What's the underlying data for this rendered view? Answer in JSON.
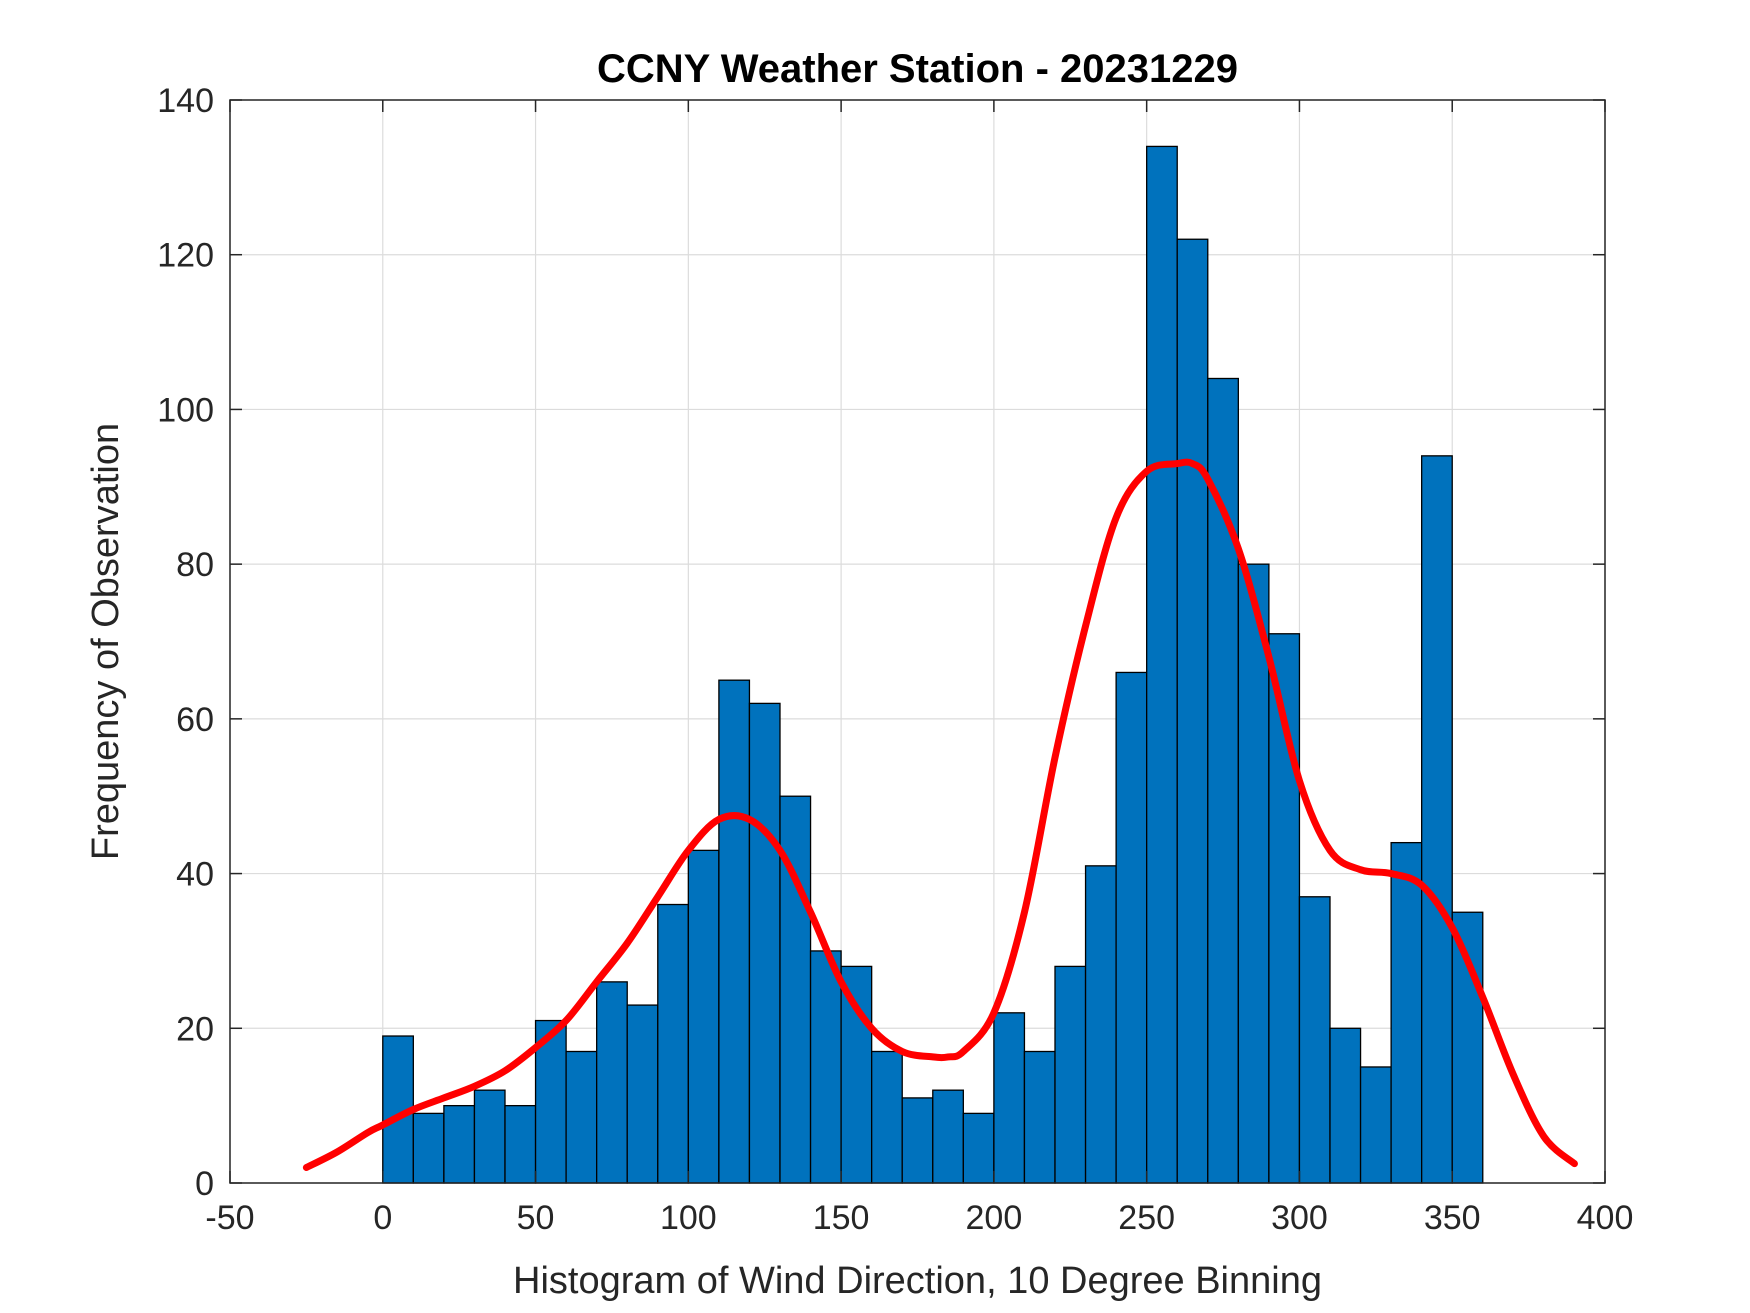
{
  "chart_data": {
    "type": "bar",
    "title": "CCNY Weather Station - 20231229",
    "xlabel": "Histogram of Wind Direction, 10 Degree Binning",
    "ylabel": "Frequency of Observation",
    "xlim": [
      -50,
      400
    ],
    "ylim": [
      0,
      140
    ],
    "xticks": [
      -50,
      0,
      50,
      100,
      150,
      200,
      250,
      300,
      350,
      400
    ],
    "yticks": [
      0,
      20,
      40,
      60,
      80,
      100,
      120,
      140
    ],
    "grid": true,
    "bin_width": 10,
    "bin_edges_start": [
      0,
      10,
      20,
      30,
      40,
      50,
      60,
      70,
      80,
      90,
      100,
      110,
      120,
      130,
      140,
      150,
      160,
      170,
      180,
      190,
      200,
      210,
      220,
      230,
      240,
      250,
      260,
      270,
      280,
      290,
      300,
      310,
      320,
      330,
      340,
      350
    ],
    "values": [
      19,
      9,
      10,
      12,
      10,
      21,
      17,
      26,
      23,
      36,
      43,
      65,
      62,
      50,
      30,
      28,
      17,
      11,
      12,
      9,
      22,
      17,
      28,
      41,
      66,
      134,
      122,
      104,
      80,
      71,
      37,
      20,
      15,
      44,
      94,
      35
    ],
    "bar_color": "#0072BD",
    "curve": {
      "color": "#FF0000",
      "x": [
        -25,
        -15,
        -5,
        0,
        10,
        20,
        30,
        40,
        50,
        60,
        70,
        80,
        90,
        100,
        110,
        120,
        130,
        140,
        150,
        160,
        170,
        180,
        185,
        190,
        200,
        210,
        220,
        230,
        240,
        250,
        260,
        265,
        270,
        280,
        290,
        300,
        310,
        320,
        330,
        340,
        350,
        360,
        370,
        380,
        390
      ],
      "y": [
        2,
        4,
        6.5,
        7.5,
        9.5,
        11,
        12.5,
        14.5,
        17.5,
        21,
        26,
        31,
        37,
        43,
        47,
        47,
        43,
        35,
        26,
        20,
        17,
        16.3,
        16.3,
        17,
        22,
        35,
        55,
        72,
        86,
        92,
        93,
        93,
        91,
        82,
        68,
        52,
        43,
        40.5,
        40,
        38.5,
        33,
        24,
        14,
        6,
        2.5
      ]
    }
  }
}
